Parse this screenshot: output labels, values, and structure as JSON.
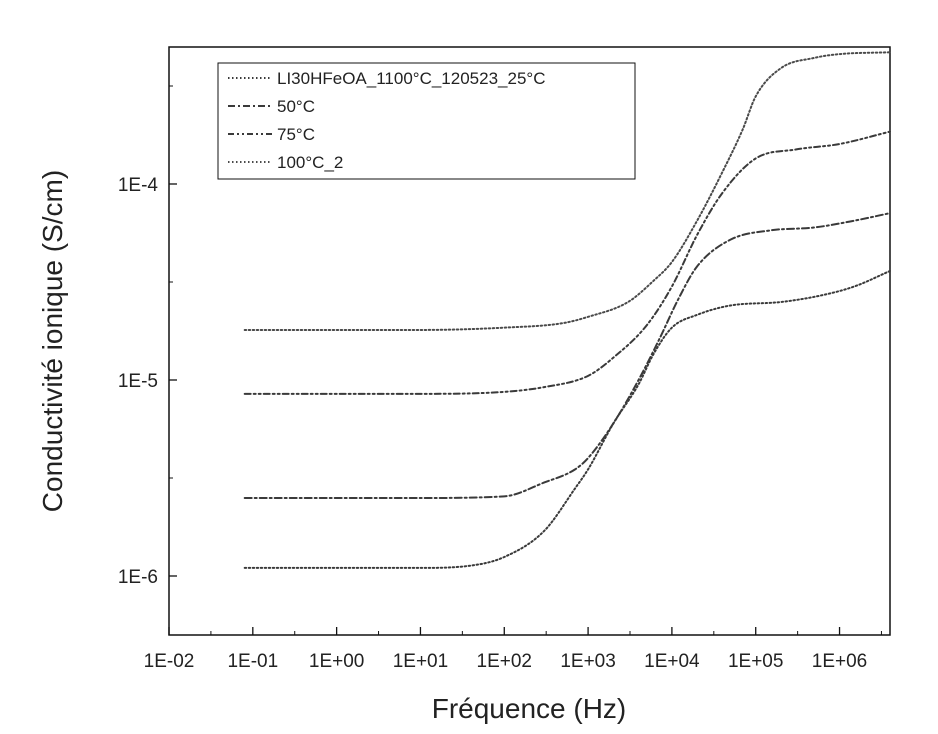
{
  "chart_data": {
    "type": "line",
    "xlabel": "Fréquence (Hz)",
    "ylabel": "Conductivité ionique (S/cm)",
    "x_scale": "log",
    "y_scale": "log",
    "xlim": [
      0.01,
      4000000
    ],
    "ylim": [
      5e-07,
      0.0005
    ],
    "x_ticks": [
      {
        "value": 0.01,
        "label": "1E-02"
      },
      {
        "value": 0.1,
        "label": "1E-01"
      },
      {
        "value": 1,
        "label": "1E+00"
      },
      {
        "value": 10,
        "label": "1E+01"
      },
      {
        "value": 100,
        "label": "1E+02"
      },
      {
        "value": 1000,
        "label": "1E+03"
      },
      {
        "value": 10000,
        "label": "1E+04"
      },
      {
        "value": 100000,
        "label": "1E+05"
      },
      {
        "value": 1000000,
        "label": "1E+06"
      }
    ],
    "y_ticks": [
      {
        "value": 1e-06,
        "label": "1E-6"
      },
      {
        "value": 1e-05,
        "label": "1E-5"
      },
      {
        "value": 0.0001,
        "label": "1E-4"
      }
    ],
    "grid": false,
    "legend": "top-left",
    "series": [
      {
        "name": "LI30HFeOA_1100°C_120523_25°C",
        "color": "#3a3a3a",
        "dash": "dotted",
        "points": [
          [
            0.08,
            1.1e-06
          ],
          [
            1,
            1.1e-06
          ],
          [
            10,
            1.1e-06
          ],
          [
            40,
            1.13e-06
          ],
          [
            100,
            1.25e-06
          ],
          [
            300,
            1.7e-06
          ],
          [
            700,
            2.8e-06
          ],
          [
            1000,
            3.5e-06
          ],
          [
            2000,
            6e-06
          ],
          [
            4000,
            9.5e-06
          ],
          [
            6000,
            1.35e-05
          ],
          [
            10000,
            1.85e-05
          ],
          [
            20000,
            2.15e-05
          ],
          [
            50000,
            2.4e-05
          ],
          [
            200000,
            2.5e-05
          ],
          [
            600000,
            2.7e-05
          ],
          [
            1500000,
            3e-05
          ],
          [
            4000000,
            3.6e-05
          ]
        ]
      },
      {
        "name": "50°C",
        "color": "#3a3a3a",
        "dash": "dash-dot",
        "points": [
          [
            0.08,
            2.5e-06
          ],
          [
            1,
            2.5e-06
          ],
          [
            10,
            2.5e-06
          ],
          [
            100,
            2.55e-06
          ],
          [
            300,
            3e-06
          ],
          [
            700,
            3.5e-06
          ],
          [
            1000,
            4e-06
          ],
          [
            2000,
            6e-06
          ],
          [
            4000,
            1e-05
          ],
          [
            7000,
            1.6e-05
          ],
          [
            12000,
            2.6e-05
          ],
          [
            20000,
            3.8e-05
          ],
          [
            50000,
            5.2e-05
          ],
          [
            150000,
            5.8e-05
          ],
          [
            500000,
            6e-05
          ],
          [
            1500000,
            6.5e-05
          ],
          [
            4000000,
            7.1e-05
          ]
        ]
      },
      {
        "name": "75°C",
        "color": "#3a3a3a",
        "dash": "dash-dot-dot",
        "points": [
          [
            0.08,
            8.5e-06
          ],
          [
            1,
            8.5e-06
          ],
          [
            10,
            8.5e-06
          ],
          [
            100,
            8.7e-06
          ],
          [
            300,
            9.2e-06
          ],
          [
            1000,
            1.05e-05
          ],
          [
            2000,
            1.3e-05
          ],
          [
            5000,
            1.9e-05
          ],
          [
            10000,
            3e-05
          ],
          [
            20000,
            5.5e-05
          ],
          [
            40000,
            9e-05
          ],
          [
            100000,
            0.000135
          ],
          [
            300000,
            0.00015
          ],
          [
            1000000,
            0.00016
          ],
          [
            4000000,
            0.000185
          ]
        ]
      },
      {
        "name": "100°C_2",
        "color": "#4a4a4a",
        "dash": "dotted",
        "points": [
          [
            0.08,
            1.8e-05
          ],
          [
            1,
            1.8e-05
          ],
          [
            10,
            1.8e-05
          ],
          [
            100,
            1.85e-05
          ],
          [
            500,
            1.95e-05
          ],
          [
            1000,
            2.1e-05
          ],
          [
            3000,
            2.5e-05
          ],
          [
            6000,
            3.2e-05
          ],
          [
            10000,
            4e-05
          ],
          [
            20000,
            6.5e-05
          ],
          [
            40000,
            0.000115
          ],
          [
            70000,
            0.00019
          ],
          [
            100000,
            0.00028
          ],
          [
            200000,
            0.00039
          ],
          [
            500000,
            0.00044
          ],
          [
            1000000,
            0.00046
          ],
          [
            4000000,
            0.00047
          ]
        ]
      }
    ]
  }
}
